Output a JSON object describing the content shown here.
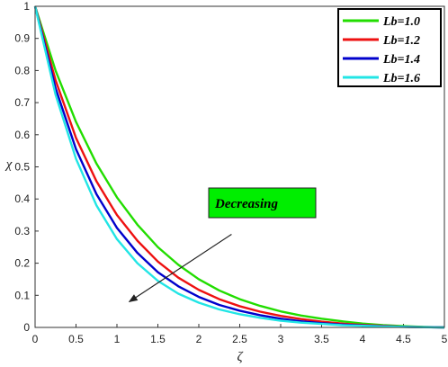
{
  "chart_data": {
    "type": "line",
    "xlabel": "ζ",
    "ylabel": "χ",
    "xlim": [
      0,
      5
    ],
    "ylim": [
      0,
      1
    ],
    "xticks": [
      "0",
      "0.5",
      "1",
      "1.5",
      "2",
      "2.5",
      "3",
      "3.5",
      "4",
      "4.5",
      "5"
    ],
    "yticks": [
      "0",
      "0.1",
      "0.2",
      "0.3",
      "0.4",
      "0.5",
      "0.6",
      "0.7",
      "0.8",
      "0.9",
      "1"
    ],
    "grid": false,
    "legend_position": "top-right",
    "x": [
      0,
      0.25,
      0.5,
      0.75,
      1,
      1.25,
      1.5,
      1.75,
      2,
      2.25,
      2.5,
      2.75,
      3,
      3.25,
      3.5,
      3.75,
      4,
      4.25,
      4.5,
      4.75,
      5
    ],
    "series": [
      {
        "name": "Lb=1.0",
        "color": "#22dd00",
        "values": [
          1,
          0.8,
          0.64,
          0.51,
          0.405,
          0.32,
          0.25,
          0.195,
          0.15,
          0.115,
          0.088,
          0.067,
          0.05,
          0.037,
          0.027,
          0.019,
          0.012,
          0.007,
          0.004,
          0.0015,
          0
        ]
      },
      {
        "name": "Lb=1.2",
        "color": "#ee1111",
        "values": [
          1,
          0.77,
          0.59,
          0.455,
          0.35,
          0.27,
          0.205,
          0.155,
          0.117,
          0.088,
          0.066,
          0.049,
          0.036,
          0.026,
          0.018,
          0.012,
          0.008,
          0.005,
          0.002,
          0.001,
          0
        ]
      },
      {
        "name": "Lb=1.4",
        "color": "#0000cc",
        "values": [
          1,
          0.745,
          0.555,
          0.415,
          0.31,
          0.232,
          0.172,
          0.128,
          0.095,
          0.07,
          0.052,
          0.038,
          0.027,
          0.019,
          0.013,
          0.009,
          0.006,
          0.0035,
          0.002,
          0.0008,
          0
        ]
      },
      {
        "name": "Lb=1.6",
        "color": "#22e5e5",
        "values": [
          1,
          0.725,
          0.525,
          0.38,
          0.275,
          0.2,
          0.145,
          0.105,
          0.077,
          0.056,
          0.041,
          0.03,
          0.021,
          0.015,
          0.011,
          0.007,
          0.005,
          0.003,
          0.0015,
          0.0006,
          0
        ]
      }
    ],
    "annotation": {
      "text": "Decreasing",
      "box_color": "#00ee00",
      "arrow_from": [
        2.4,
        0.29
      ],
      "arrow_to": [
        1.15,
        0.08
      ]
    }
  }
}
